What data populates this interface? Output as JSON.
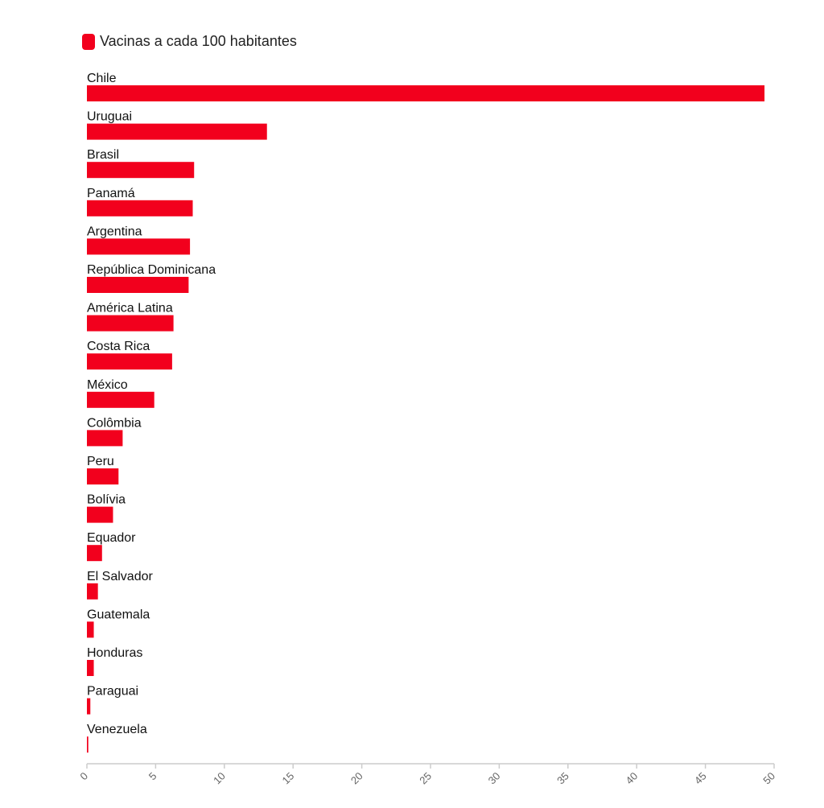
{
  "chart_data": {
    "type": "bar",
    "orientation": "horizontal",
    "title": "",
    "xlabel": "",
    "ylabel": "",
    "legend": {
      "position": "top-left",
      "entries": [
        "Vacinas a cada 100 habitantes"
      ]
    },
    "series": [
      {
        "name": "Vacinas a cada 100 habitantes",
        "color": "#f2001d"
      }
    ],
    "categories": [
      "Chile",
      "Uruguai",
      "Brasil",
      "Panamá",
      "Argentina",
      "República Dominicana",
      "América Latina",
      "Costa Rica",
      "México",
      "Colômbia",
      "Peru",
      "Bolívia",
      "Equador",
      "El Salvador",
      "Guatemala",
      "Honduras",
      "Paraguai",
      "Venezuela"
    ],
    "values": [
      49.3,
      13.1,
      7.8,
      7.7,
      7.5,
      7.4,
      6.3,
      6.2,
      4.9,
      2.6,
      2.3,
      1.9,
      1.1,
      0.8,
      0.5,
      0.5,
      0.25,
      0.1
    ],
    "xlim": [
      0,
      50
    ],
    "xticks": [
      "0",
      "5",
      "10",
      "15",
      "20",
      "25",
      "30",
      "35",
      "40",
      "45",
      "50"
    ],
    "grid": false
  }
}
